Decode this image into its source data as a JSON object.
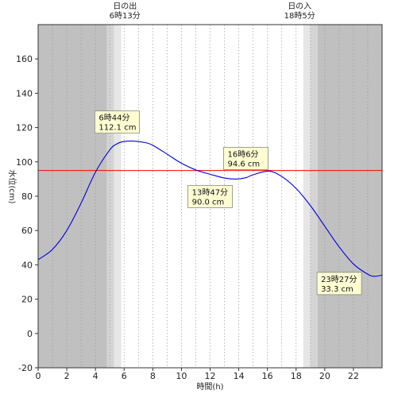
{
  "chart_data": {
    "type": "line",
    "title": "",
    "xlabel": "時間(h)",
    "ylabel": "水位(cm)",
    "xlim": [
      0,
      24
    ],
    "ylim": [
      -20,
      180
    ],
    "xticks": [
      0,
      2,
      4,
      6,
      8,
      10,
      12,
      14,
      16,
      18,
      20,
      22
    ],
    "yticks": [
      -20,
      0,
      20,
      40,
      60,
      80,
      100,
      120,
      140,
      160
    ],
    "x_tick_labels": [
      "0",
      "2",
      "4",
      "6",
      "8",
      "10",
      "12",
      "14",
      "16",
      "18",
      "20",
      "22"
    ],
    "y_tick_labels": [
      "-20",
      "0",
      "20",
      "40",
      "60",
      "80",
      "100",
      "120",
      "140",
      "160"
    ],
    "grid": "vertical dotted, every hour",
    "reference_line": {
      "y": 95,
      "color": "#ff0000"
    },
    "sunrise": {
      "title": "日の出",
      "time": "6時13分",
      "x": 6.22
    },
    "sunset": {
      "title": "日の入",
      "time": "18時5分",
      "x": 18.08
    },
    "night_shading": [
      {
        "from": 0,
        "to": 4.8,
        "level": "dark"
      },
      {
        "from": 4.8,
        "to": 5.3,
        "level": "mid"
      },
      {
        "from": 5.3,
        "to": 5.8,
        "level": "light"
      },
      {
        "from": 18.5,
        "to": 19.0,
        "level": "light"
      },
      {
        "from": 19.0,
        "to": 19.5,
        "level": "mid"
      },
      {
        "from": 19.5,
        "to": 24,
        "level": "dark"
      }
    ],
    "series": [
      {
        "color": "#0000dd",
        "x": [
          0,
          1,
          2,
          3,
          4,
          5,
          5.5,
          6,
          6.73,
          7.5,
          8,
          9,
          10,
          11,
          12,
          13,
          13.78,
          14.5,
          15,
          16.1,
          17,
          18,
          19,
          20,
          21,
          22,
          23,
          23.45,
          24
        ],
        "y": [
          43,
          49,
          60,
          76,
          94,
          107,
          110.5,
          111.9,
          112.1,
          111.2,
          109.7,
          104.5,
          99.2,
          95.3,
          92.8,
          90.6,
          90.0,
          90.8,
          92.5,
          94.6,
          91.5,
          84.5,
          74.5,
          62.5,
          50.5,
          40.5,
          34.5,
          33.3,
          34
        ]
      }
    ],
    "annotations": [
      {
        "time": "6時44分",
        "value": "112.1 cm",
        "x": 6.73,
        "y": 112.1
      },
      {
        "time": "16時6分",
        "value": "94.6 cm",
        "x": 16.1,
        "y": 94.6
      },
      {
        "time": "13時47分",
        "value": "90.0 cm",
        "x": 13.78,
        "y": 90.0
      },
      {
        "time": "23時27分",
        "value": "33.3 cm",
        "x": 23.45,
        "y": 33.3
      }
    ]
  }
}
